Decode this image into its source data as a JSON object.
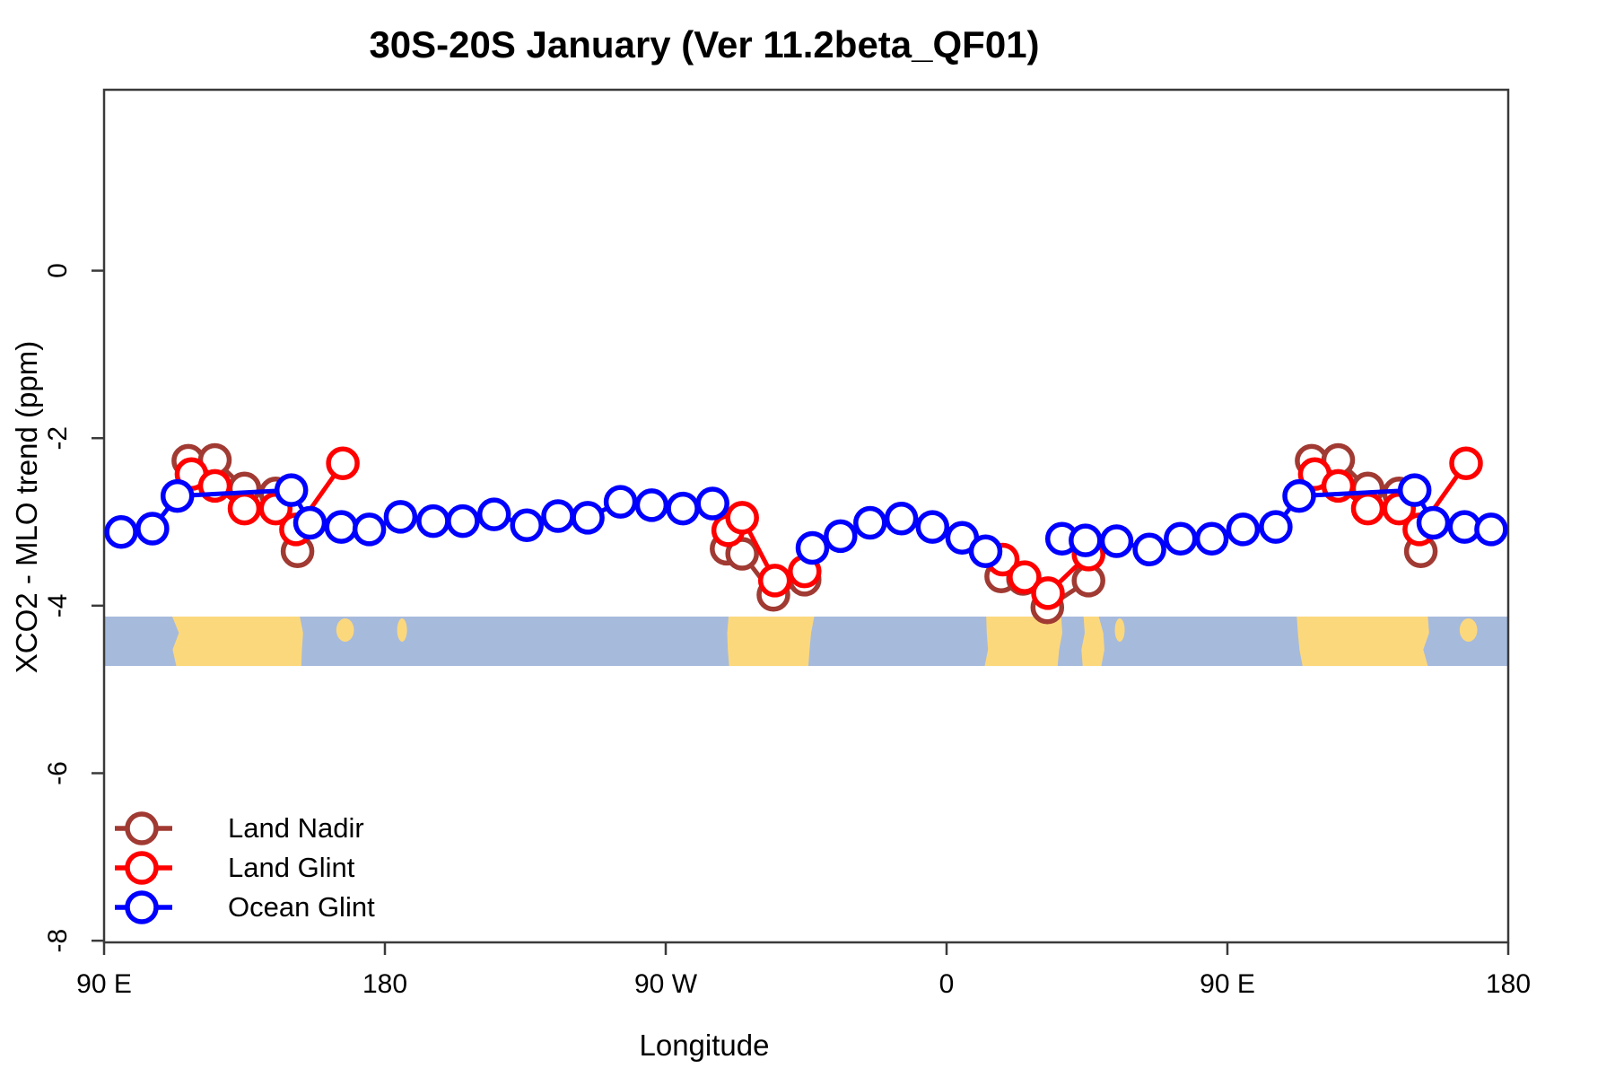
{
  "chart_data": {
    "type": "line",
    "title": "30S-20S January (Ver 11.2beta_QF01)",
    "xlabel": "Longitude",
    "ylabel": "XCO2 - MLO trend (ppm)",
    "xlim": [
      90,
      540
    ],
    "ylim": [
      -8.02,
      2.16
    ],
    "grid": false,
    "legend_position": "inside-bottom-left",
    "x_ticks": [
      {
        "lon": 90,
        "label": "90 E"
      },
      {
        "lon": 180,
        "label": "180"
      },
      {
        "lon": 270,
        "label": "90 W"
      },
      {
        "lon": 360,
        "label": "0"
      },
      {
        "lon": 450,
        "label": "90 E"
      },
      {
        "lon": 540,
        "label": "180"
      }
    ],
    "y_ticks": [
      {
        "value": 0,
        "label": "0"
      },
      {
        "value": -2,
        "label": "-2"
      },
      {
        "value": -4,
        "label": "-4"
      },
      {
        "value": -6,
        "label": "-6"
      },
      {
        "value": -8,
        "label": "-8"
      }
    ],
    "series": [
      {
        "name": "Land Nadir",
        "color": "#A03A32",
        "points": [
          [
            117,
            -2.27
          ],
          [
            125.5,
            -2.26
          ],
          [
            135,
            -2.6
          ],
          [
            145,
            -2.66
          ],
          [
            152,
            -3.35
          ],
          null,
          [
            289.5,
            -3.32
          ],
          [
            294.5,
            -3.38
          ],
          [
            304.5,
            -3.87
          ],
          [
            314.5,
            -3.69
          ],
          null,
          [
            377.5,
            -3.65
          ],
          [
            384.5,
            -3.68
          ],
          [
            392.3,
            -4.02
          ],
          [
            405.5,
            -3.7
          ],
          null,
          [
            477,
            -2.27
          ],
          [
            485.5,
            -2.26
          ],
          [
            495,
            -2.6
          ],
          [
            505,
            -2.66
          ],
          [
            512,
            -3.35
          ]
        ]
      },
      {
        "name": "Land Glint",
        "color": "#FF0000",
        "points": [
          [
            118,
            -2.43
          ],
          [
            125.5,
            -2.57
          ],
          [
            135,
            -2.84
          ],
          [
            145,
            -2.84
          ],
          [
            151.5,
            -3.09
          ],
          [
            166.5,
            -2.3
          ],
          null,
          [
            290,
            -3.1
          ],
          [
            294.5,
            -2.95
          ],
          [
            305,
            -3.7
          ],
          [
            314.5,
            -3.59
          ],
          null,
          [
            378,
            -3.45
          ],
          [
            385,
            -3.66
          ],
          [
            392.5,
            -3.85
          ],
          [
            405.5,
            -3.39
          ],
          null,
          [
            478,
            -2.43
          ],
          [
            485.5,
            -2.57
          ],
          [
            495,
            -2.84
          ],
          [
            505,
            -2.84
          ],
          [
            511.5,
            -3.09
          ],
          [
            526.5,
            -2.3
          ]
        ]
      },
      {
        "name": "Ocean Glint",
        "color": "#0000FF",
        "points": [
          [
            95.5,
            -3.12
          ],
          [
            105.5,
            -3.08
          ],
          [
            113.5,
            -2.69
          ],
          [
            150,
            -2.62
          ],
          [
            156,
            -3.01
          ],
          [
            166,
            -3.06
          ],
          [
            175,
            -3.09
          ],
          [
            185,
            -2.94
          ],
          [
            195.5,
            -2.99
          ],
          [
            205,
            -2.99
          ],
          [
            215,
            -2.91
          ],
          [
            225.5,
            -3.04
          ],
          [
            235.5,
            -2.93
          ],
          [
            245,
            -2.95
          ],
          [
            255.5,
            -2.76
          ],
          [
            265.5,
            -2.8
          ],
          [
            275.5,
            -2.84
          ],
          [
            285,
            -2.78
          ],
          null,
          [
            317,
            -3.31
          ],
          [
            326,
            -3.17
          ],
          [
            335.5,
            -3.01
          ],
          [
            345.5,
            -2.96
          ],
          [
            355.5,
            -3.06
          ],
          [
            365,
            -3.19
          ],
          [
            372.5,
            -3.35
          ],
          null,
          [
            397,
            -3.2
          ],
          [
            404.5,
            -3.22
          ],
          [
            414.5,
            -3.23
          ],
          [
            425,
            -3.33
          ],
          [
            435,
            -3.2
          ],
          [
            445,
            -3.2
          ],
          [
            455,
            -3.09
          ],
          [
            465.5,
            -3.06
          ],
          [
            473,
            -2.69
          ],
          [
            510,
            -2.62
          ],
          [
            516,
            -3.01
          ],
          [
            526,
            -3.06
          ],
          [
            534.5,
            -3.09
          ]
        ]
      }
    ],
    "map_strip": {
      "description": "land-ocean map band of the 30S-20S latitude zone",
      "value_top": -4.13,
      "value_bottom": -4.72,
      "ocean_color": "#A6BADC",
      "land_color": "#FCD87D",
      "land_segments": [
        {
          "lon": [
            113,
            153.5
          ],
          "kind": "landmass"
        },
        {
          "lon": [
            165,
            169.5
          ],
          "kind": "islands"
        },
        {
          "lon": [
            184.5,
            186.5
          ],
          "kind": "islands"
        },
        {
          "lon": [
            290,
            316.5
          ],
          "kind": "landmass"
        },
        {
          "lon": [
            373,
            396
          ],
          "kind": "landmass"
        },
        {
          "lon": [
            404,
            409.5
          ],
          "kind": "landmass"
        },
        {
          "lon": [
            414.5,
            416.5
          ],
          "kind": "islands"
        },
        {
          "lon": [
            473,
            513.5
          ],
          "kind": "landmass"
        },
        {
          "lon": [
            525,
            529.5
          ],
          "kind": "islands"
        }
      ]
    },
    "legend": [
      {
        "label": "Land Nadir",
        "color": "#A03A32"
      },
      {
        "label": "Land Glint",
        "color": "#FF0000"
      },
      {
        "label": "Ocean Glint",
        "color": "#0000FF"
      }
    ],
    "axis_color": "#3a3a3a",
    "marker": {
      "radius": 16,
      "stroke_width": 5.5,
      "fill": "#ffffff"
    },
    "line_width": 5
  }
}
